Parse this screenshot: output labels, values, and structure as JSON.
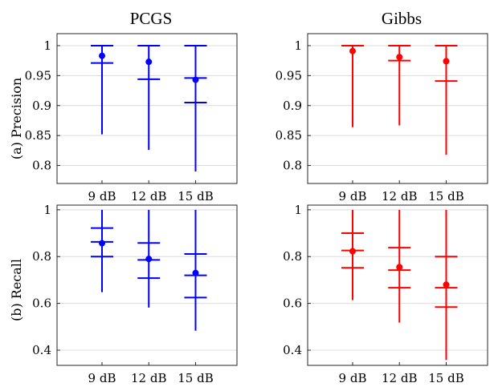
{
  "chart_data": [
    {
      "type": "errorbar",
      "title": "PCGS",
      "ylabel": "(a) Precision",
      "color": "#0000ff",
      "categories": [
        "9 dB",
        "12 dB",
        "15 dB"
      ],
      "ylim": [
        0.77,
        1.02
      ],
      "yticks": [
        0.8,
        0.85,
        0.9,
        0.95,
        1
      ],
      "ytick_labels": [
        "0.8",
        "0.85",
        "0.9",
        "0.95",
        "1"
      ],
      "grid": true,
      "series": [
        {
          "median": [
            0.983,
            0.973,
            0.943
          ],
          "whisker_low": [
            0.852,
            0.826,
            0.79
          ],
          "whisker_high": [
            1.0,
            1.0,
            1.0
          ],
          "quantile_marks": [
            [
              0.971,
              1.0
            ],
            [
              0.944,
              1.0
            ],
            [
              0.905,
              0.946,
              1.0
            ]
          ]
        }
      ]
    },
    {
      "type": "errorbar",
      "title": "Gibbs",
      "ylabel": "",
      "color": "#ff0000",
      "categories": [
        "9 dB",
        "12 dB",
        "15 dB"
      ],
      "ylim": [
        0.77,
        1.02
      ],
      "yticks": [
        0.8,
        0.85,
        0.9,
        0.95,
        1
      ],
      "ytick_labels": [
        "0.8",
        "0.85",
        "0.9",
        "0.95",
        "1"
      ],
      "grid": true,
      "series": [
        {
          "median": [
            0.991,
            0.981,
            0.974
          ],
          "whisker_low": [
            0.864,
            0.867,
            0.818
          ],
          "whisker_high": [
            1.0,
            1.0,
            1.0
          ],
          "quantile_marks": [
            [
              1.0
            ],
            [
              0.975,
              1.0
            ],
            [
              0.941,
              1.0
            ]
          ]
        }
      ]
    },
    {
      "type": "errorbar",
      "title": "",
      "ylabel": "(b) Recall",
      "color": "#0000ff",
      "categories": [
        "9 dB",
        "12 dB",
        "15 dB"
      ],
      "ylim": [
        0.335,
        1.02
      ],
      "yticks": [
        0.4,
        0.6,
        0.8,
        1
      ],
      "ytick_labels": [
        "0.4",
        "0.6",
        "0.8",
        "1"
      ],
      "grid": true,
      "series": [
        {
          "median": [
            0.857,
            0.79,
            0.73
          ],
          "whisker_low": [
            0.648,
            0.582,
            0.483
          ],
          "whisker_high": [
            1.0,
            1.0,
            1.0
          ],
          "quantile_marks": [
            [
              0.8,
              0.863,
              0.922
            ],
            [
              0.708,
              0.786,
              0.858
            ],
            [
              0.625,
              0.72,
              0.811
            ]
          ]
        }
      ]
    },
    {
      "type": "errorbar",
      "title": "",
      "ylabel": "",
      "color": "#ff0000",
      "categories": [
        "9 dB",
        "12 dB",
        "15 dB"
      ],
      "ylim": [
        0.335,
        1.02
      ],
      "yticks": [
        0.4,
        0.6,
        0.8,
        1
      ],
      "ytick_labels": [
        "0.4",
        "0.6",
        "0.8",
        "1"
      ],
      "grid": true,
      "series": [
        {
          "median": [
            0.823,
            0.755,
            0.68
          ],
          "whisker_low": [
            0.614,
            0.518,
            0.358
          ],
          "whisker_high": [
            1.0,
            1.0,
            1.0
          ],
          "quantile_marks": [
            [
              0.752,
              0.826,
              0.9
            ],
            [
              0.667,
              0.742,
              0.838
            ],
            [
              0.584,
              0.667,
              0.8
            ]
          ]
        }
      ]
    }
  ]
}
